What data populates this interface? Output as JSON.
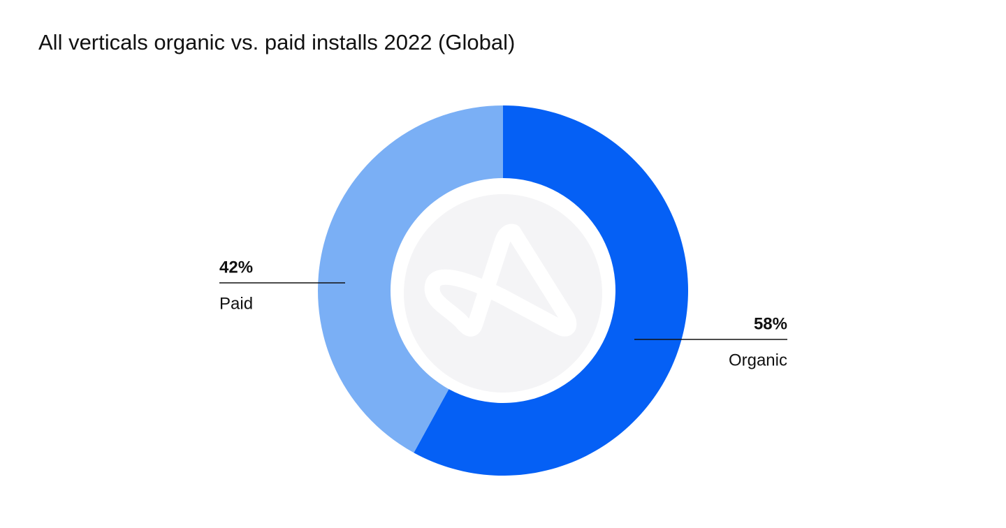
{
  "chart_data": {
    "type": "donut",
    "title": "All verticals organic vs. paid installs 2022 (Global)",
    "categories": [
      "Organic",
      "Paid"
    ],
    "values": [
      58,
      42
    ],
    "value_labels": [
      "58%",
      "42%"
    ],
    "colors": [
      "#0560f5",
      "#7aaff5"
    ]
  }
}
